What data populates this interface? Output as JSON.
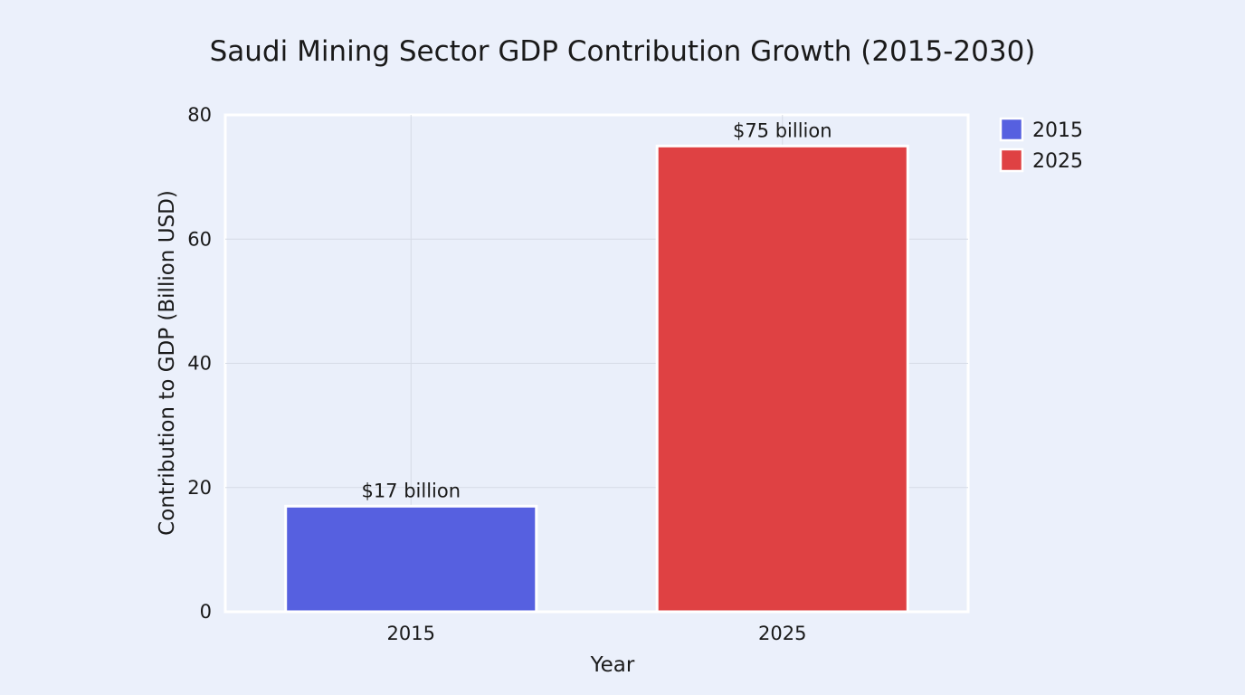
{
  "chart_data": {
    "type": "bar",
    "title": "Saudi Mining Sector GDP Contribution Growth (2015-2030)",
    "xlabel": "Year",
    "ylabel": "Contribution to GDP (Billion USD)",
    "categories": [
      "2015",
      "2025"
    ],
    "values": [
      17,
      75
    ],
    "data_labels": [
      "$17 billion",
      "$75 billion"
    ],
    "ylim": [
      0,
      80
    ],
    "yticks": [
      "0",
      "20",
      "40",
      "60",
      "80"
    ],
    "grid": true,
    "legend": {
      "placement": "outside-right-top",
      "entries": [
        "2015",
        "2025"
      ]
    },
    "colors": [
      "#5660e0",
      "#df4143"
    ]
  }
}
